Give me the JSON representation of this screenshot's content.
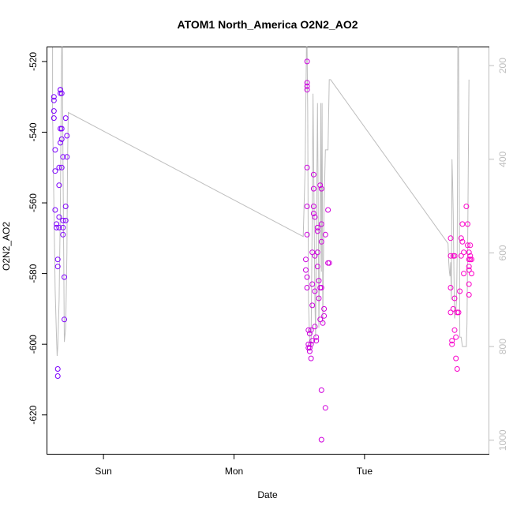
{
  "chart_data": {
    "type": "scatter",
    "title": "ATOM1 North_America O2N2_AO2",
    "xlabel": "Date",
    "ylabel": "O2N2_AO2",
    "x_ticks": [
      {
        "label": "Sun",
        "value": 1.0
      },
      {
        "label": "Mon",
        "value": 2.0
      },
      {
        "label": "Tue",
        "value": 3.0
      }
    ],
    "xlim": [
      0.57,
      3.95
    ],
    "ylim": [
      -631,
      -516
    ],
    "y_ticks": [
      -620,
      -600,
      -580,
      -560,
      -540,
      -520
    ],
    "y2_ticks": [
      200,
      400,
      600,
      800,
      1000
    ],
    "y2lim": [
      161,
      1029
    ],
    "grid": false,
    "colors": {
      "line": "#bebebe",
      "early": "#7a00ff",
      "late": "#ff00c8",
      "right_axis": "#bebebe"
    },
    "series": [
      {
        "kind": "points",
        "values": [
          [
            0.62,
            -530
          ],
          [
            0.62,
            -531
          ],
          [
            0.62,
            -534
          ],
          [
            0.62,
            -536
          ],
          [
            0.63,
            -545
          ],
          [
            0.63,
            -551
          ],
          [
            0.63,
            -562
          ],
          [
            0.64,
            -566
          ],
          [
            0.64,
            -567
          ],
          [
            0.65,
            -576
          ],
          [
            0.65,
            -578
          ],
          [
            0.65,
            -607
          ],
          [
            0.65,
            -609
          ],
          [
            0.66,
            -564
          ],
          [
            0.66,
            -567
          ],
          [
            0.66,
            -555
          ],
          [
            0.66,
            -550
          ],
          [
            0.67,
            -543
          ],
          [
            0.67,
            -539
          ],
          [
            0.67,
            -529
          ],
          [
            0.67,
            -528
          ],
          [
            0.67,
            -528
          ],
          [
            0.68,
            -529
          ],
          [
            0.68,
            -539
          ],
          [
            0.68,
            -542
          ],
          [
            0.68,
            -550
          ],
          [
            0.69,
            -547
          ],
          [
            0.69,
            -565
          ],
          [
            0.69,
            -569
          ],
          [
            0.69,
            -567
          ],
          [
            0.7,
            -581
          ],
          [
            0.7,
            -593
          ],
          [
            0.71,
            -561
          ],
          [
            0.71,
            -565
          ],
          [
            0.71,
            -536
          ],
          [
            0.72,
            -541
          ],
          [
            0.72,
            -547
          ],
          [
            2.56,
            -520
          ],
          [
            2.56,
            -526
          ],
          [
            2.56,
            -527
          ],
          [
            2.56,
            -528
          ],
          [
            2.56,
            -550
          ],
          [
            2.56,
            -561
          ],
          [
            2.56,
            -569
          ],
          [
            2.55,
            -576
          ],
          [
            2.55,
            -579
          ],
          [
            2.56,
            -581
          ],
          [
            2.56,
            -584
          ],
          [
            2.57,
            -596
          ],
          [
            2.57,
            -600
          ],
          [
            2.57,
            -601
          ],
          [
            2.58,
            -597
          ],
          [
            2.58,
            -601
          ],
          [
            2.58,
            -602
          ],
          [
            2.59,
            -596
          ],
          [
            2.59,
            -604
          ],
          [
            2.59,
            -600
          ],
          [
            2.6,
            -599
          ],
          [
            2.6,
            -583
          ],
          [
            2.6,
            -589
          ],
          [
            2.6,
            -574
          ],
          [
            2.61,
            -552
          ],
          [
            2.61,
            -556
          ],
          [
            2.61,
            -561
          ],
          [
            2.61,
            -563
          ],
          [
            2.62,
            -564
          ],
          [
            2.62,
            -575
          ],
          [
            2.62,
            -585
          ],
          [
            2.62,
            -595
          ],
          [
            2.63,
            -599
          ],
          [
            2.63,
            -598
          ],
          [
            2.64,
            -568
          ],
          [
            2.64,
            -567
          ],
          [
            2.64,
            -574
          ],
          [
            2.64,
            -578
          ],
          [
            2.65,
            -582
          ],
          [
            2.65,
            -587
          ],
          [
            2.66,
            -584
          ],
          [
            2.66,
            -593
          ],
          [
            2.66,
            -555
          ],
          [
            2.67,
            -556
          ],
          [
            2.67,
            -566
          ],
          [
            2.67,
            -571
          ],
          [
            2.67,
            -584
          ],
          [
            2.67,
            -613
          ],
          [
            2.67,
            -627
          ],
          [
            2.68,
            -594
          ],
          [
            2.69,
            -590
          ],
          [
            2.69,
            -592
          ],
          [
            2.7,
            -618
          ],
          [
            2.7,
            -569
          ],
          [
            2.72,
            -577
          ],
          [
            2.72,
            -562
          ],
          [
            2.73,
            -577
          ],
          [
            3.66,
            -570
          ],
          [
            3.66,
            -575
          ],
          [
            3.66,
            -584
          ],
          [
            3.66,
            -591
          ],
          [
            3.67,
            -599
          ],
          [
            3.67,
            -600
          ],
          [
            3.68,
            -590
          ],
          [
            3.68,
            -575
          ],
          [
            3.69,
            -575
          ],
          [
            3.69,
            -587
          ],
          [
            3.69,
            -596
          ],
          [
            3.7,
            -598
          ],
          [
            3.7,
            -604
          ],
          [
            3.71,
            -607
          ],
          [
            3.71,
            -591
          ],
          [
            3.72,
            -591
          ],
          [
            3.73,
            -585
          ],
          [
            3.74,
            -575
          ],
          [
            3.74,
            -570
          ],
          [
            3.75,
            -566
          ],
          [
            3.75,
            -571
          ],
          [
            3.76,
            -574
          ],
          [
            3.76,
            -580
          ],
          [
            3.78,
            -561
          ],
          [
            3.79,
            -566
          ],
          [
            3.79,
            -572
          ],
          [
            3.8,
            -574
          ],
          [
            3.8,
            -576
          ],
          [
            3.8,
            -578
          ],
          [
            3.8,
            -579
          ],
          [
            3.8,
            -583
          ],
          [
            3.8,
            -586
          ],
          [
            3.81,
            -572
          ],
          [
            3.81,
            -575
          ],
          [
            3.81,
            -576
          ],
          [
            3.82,
            -576
          ],
          [
            3.82,
            -580
          ]
        ]
      },
      {
        "kind": "line",
        "axis": "right",
        "values": [
          [
            0.61,
            161
          ],
          [
            0.61,
            300
          ],
          [
            0.62,
            500
          ],
          [
            0.63,
            680
          ],
          [
            0.64,
            780
          ],
          [
            0.645,
            820
          ],
          [
            0.65,
            800
          ],
          [
            0.66,
            700
          ],
          [
            0.67,
            500
          ],
          [
            0.675,
            300
          ],
          [
            0.68,
            161
          ],
          [
            0.685,
            161
          ],
          [
            0.69,
            400
          ],
          [
            0.695,
            600
          ],
          [
            0.7,
            790
          ],
          [
            0.71,
            760
          ],
          [
            0.72,
            600
          ],
          [
            0.725,
            400
          ],
          [
            0.73,
            300
          ],
          [
            2.53,
            565
          ],
          [
            2.545,
            420
          ],
          [
            2.555,
            161
          ],
          [
            2.56,
            161
          ],
          [
            2.565,
            300
          ],
          [
            2.57,
            700
          ],
          [
            2.58,
            790
          ],
          [
            2.59,
            800
          ],
          [
            2.595,
            650
          ],
          [
            2.6,
            500
          ],
          [
            2.605,
            260
          ],
          [
            2.61,
            400
          ],
          [
            2.62,
            700
          ],
          [
            2.625,
            780
          ],
          [
            2.63,
            600
          ],
          [
            2.64,
            280
          ],
          [
            2.645,
            500
          ],
          [
            2.65,
            760
          ],
          [
            2.66,
            540
          ],
          [
            2.665,
            280
          ],
          [
            2.67,
            640
          ],
          [
            2.675,
            280
          ],
          [
            2.68,
            750
          ],
          [
            2.69,
            500
          ],
          [
            2.7,
            380
          ],
          [
            2.71,
            380
          ],
          [
            2.72,
            380
          ],
          [
            2.73,
            230
          ],
          [
            2.74,
            230
          ],
          [
            3.64,
            580
          ],
          [
            3.645,
            620
          ],
          [
            3.65,
            640
          ],
          [
            3.655,
            650
          ],
          [
            3.66,
            620
          ],
          [
            3.665,
            700
          ],
          [
            3.67,
            400
          ],
          [
            3.675,
            450
          ],
          [
            3.68,
            520
          ],
          [
            3.685,
            650
          ],
          [
            3.69,
            740
          ],
          [
            3.7,
            720
          ],
          [
            3.705,
            700
          ],
          [
            3.71,
            600
          ],
          [
            3.715,
            161
          ],
          [
            3.72,
            161
          ],
          [
            3.725,
            400
          ],
          [
            3.73,
            780
          ],
          [
            3.74,
            780
          ],
          [
            3.75,
            800
          ],
          [
            3.76,
            800
          ],
          [
            3.77,
            800
          ],
          [
            3.78,
            800
          ],
          [
            3.785,
            750
          ],
          [
            3.79,
            600
          ],
          [
            3.795,
            400
          ],
          [
            3.8,
            230
          ]
        ]
      }
    ]
  }
}
